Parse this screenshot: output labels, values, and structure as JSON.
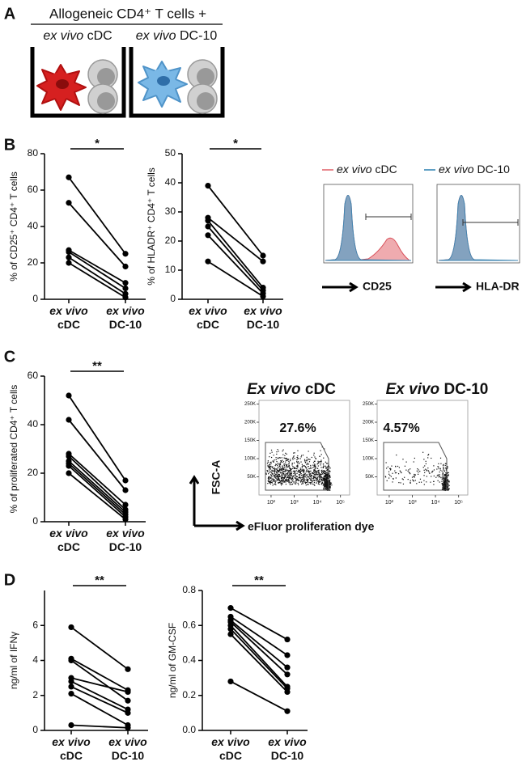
{
  "panel_labels": [
    "A",
    "B",
    "C",
    "D"
  ],
  "schematic": {
    "title": "Allogeneic CD4⁺ T cells +",
    "wells": [
      "ex vivo cDC",
      "ex vivo DC-10"
    ]
  },
  "flow_axes": {
    "ylabel": "FSC-A",
    "xlabel": "eFluor proliferation dye"
  },
  "chart_data": [
    {
      "type": "paired",
      "ylabel": "% of CD25⁺ CD4⁺ T cells",
      "annotation": "*",
      "categories": [
        "ex vivo cDC",
        "ex vivo DC-10"
      ],
      "ylim": [
        0,
        80
      ],
      "yticks": [
        0,
        20,
        40,
        60,
        80
      ],
      "series": [
        {
          "color": "#000000",
          "values": [
            67,
            25
          ]
        },
        {
          "color": "#000000",
          "values": [
            53,
            18
          ]
        },
        {
          "color": "#000000",
          "values": [
            27,
            9
          ]
        },
        {
          "color": "#000000",
          "values": [
            26,
            6
          ]
        },
        {
          "color": "#000000",
          "values": [
            23,
            3
          ]
        },
        {
          "color": "#000000",
          "values": [
            20,
            1
          ]
        }
      ]
    },
    {
      "type": "paired",
      "ylabel": "% of HLADR⁺ CD4⁺ T cells",
      "annotation": "*",
      "categories": [
        "ex vivo cDC",
        "ex vivo DC-10"
      ],
      "ylim": [
        0,
        50
      ],
      "yticks": [
        0,
        10,
        20,
        30,
        40,
        50
      ],
      "series": [
        {
          "color": "#000000",
          "values": [
            39,
            15
          ]
        },
        {
          "color": "#000000",
          "values": [
            28,
            13
          ]
        },
        {
          "color": "#000000",
          "values": [
            27,
            4
          ]
        },
        {
          "color": "#000000",
          "values": [
            25,
            3
          ]
        },
        {
          "color": "#000000",
          "values": [
            22,
            2
          ]
        },
        {
          "color": "#000000",
          "values": [
            13,
            1
          ]
        }
      ]
    },
    {
      "type": "overlay",
      "series": [
        {
          "name": "ex vivo cDC",
          "color": "#e8878d"
        },
        {
          "name": "ex vivo DC-10",
          "color": "#5f9fc4"
        }
      ],
      "xlabels": [
        "CD25",
        "HLA-DR"
      ]
    },
    {
      "type": "paired",
      "ylabel": "% of proliferated CD4⁺ T cells",
      "annotation": "**",
      "categories": [
        "ex vivo cDC",
        "ex vivo DC-10"
      ],
      "ylim": [
        0,
        60
      ],
      "yticks": [
        0,
        20,
        40,
        60
      ],
      "series": [
        {
          "color": "#000000",
          "values": [
            52,
            17
          ]
        },
        {
          "color": "#000000",
          "values": [
            42,
            13
          ]
        },
        {
          "color": "#000000",
          "values": [
            28,
            7
          ]
        },
        {
          "color": "#000000",
          "values": [
            27,
            5
          ]
        },
        {
          "color": "#000000",
          "values": [
            25,
            4
          ]
        },
        {
          "color": "#000000",
          "values": [
            24,
            3
          ]
        },
        {
          "color": "#000000",
          "values": [
            23,
            2
          ]
        },
        {
          "color": "#000000",
          "values": [
            20,
            1
          ]
        }
      ]
    },
    {
      "type": "flow",
      "title": "Ex vivo cDC",
      "values": [
        27.6
      ],
      "value_labels": [
        "27.6%"
      ],
      "xlim": [
        30,
        250000
      ],
      "log_x": true,
      "xticks": [
        {
          "value": 100,
          "label": "10²"
        },
        {
          "value": 1000,
          "label": "10³"
        },
        {
          "value": 10000,
          "label": "10⁴"
        },
        {
          "value": 100000,
          "label": "10⁵"
        }
      ],
      "ylim": [
        0,
        260000
      ],
      "yticks": [
        {
          "value": 50000,
          "label": "50K"
        },
        {
          "value": 100000,
          "label": "100K"
        },
        {
          "value": 150000,
          "label": "150K"
        },
        {
          "value": 200000,
          "label": "200K"
        },
        {
          "value": 250000,
          "label": "250K"
        }
      ]
    },
    {
      "type": "flow",
      "title": "Ex vivo DC-10",
      "values": [
        4.57
      ],
      "value_labels": [
        "4.57%"
      ],
      "xlim": [
        30,
        250000
      ],
      "log_x": true,
      "xticks": [
        {
          "value": 100,
          "label": "10²"
        },
        {
          "value": 1000,
          "label": "10³"
        },
        {
          "value": 10000,
          "label": "10⁴"
        },
        {
          "value": 100000,
          "label": "10⁵"
        }
      ],
      "ylim": [
        0,
        260000
      ],
      "yticks": [
        {
          "value": 50000,
          "label": "50K"
        },
        {
          "value": 100000,
          "label": "100K"
        },
        {
          "value": 150000,
          "label": "150K"
        },
        {
          "value": 200000,
          "label": "200K"
        },
        {
          "value": 250000,
          "label": "250K"
        }
      ]
    },
    {
      "type": "paired",
      "ylabel": "ng/ml of IFNγ",
      "annotation": "**",
      "categories": [
        "ex vivo cDC",
        "ex vivo DC-10"
      ],
      "ylim": [
        0,
        8
      ],
      "yticks": [
        0,
        2,
        4,
        6
      ],
      "series": [
        {
          "color": "#000000",
          "values": [
            5.9,
            3.5
          ]
        },
        {
          "color": "#000000",
          "values": [
            4.1,
            2.3
          ]
        },
        {
          "color": "#000000",
          "values": [
            4.0,
            1.7
          ]
        },
        {
          "color": "#000000",
          "values": [
            3.0,
            2.2
          ]
        },
        {
          "color": "#000000",
          "values": [
            2.8,
            1.2
          ]
        },
        {
          "color": "#000000",
          "values": [
            2.5,
            1.0
          ]
        },
        {
          "color": "#000000",
          "values": [
            2.1,
            0.3
          ]
        },
        {
          "color": "#000000",
          "values": [
            0.3,
            0.15
          ]
        }
      ]
    },
    {
      "type": "paired",
      "ylabel": "ng/ml of GM-CSF",
      "annotation": "**",
      "categories": [
        "ex vivo cDC",
        "ex vivo DC-10"
      ],
      "ylim": [
        0,
        0.8
      ],
      "yticks": [
        {
          "value": 0,
          "label": "0.0"
        },
        0.2,
        0.4,
        0.6,
        0.8
      ],
      "series": [
        {
          "color": "#000000",
          "values": [
            0.7,
            0.52
          ]
        },
        {
          "color": "#000000",
          "values": [
            0.65,
            0.43
          ]
        },
        {
          "color": "#000000",
          "values": [
            0.63,
            0.36
          ]
        },
        {
          "color": "#000000",
          "values": [
            0.62,
            0.32
          ]
        },
        {
          "color": "#000000",
          "values": [
            0.6,
            0.25
          ]
        },
        {
          "color": "#000000",
          "values": [
            0.58,
            0.24
          ]
        },
        {
          "color": "#000000",
          "values": [
            0.55,
            0.22
          ]
        },
        {
          "color": "#000000",
          "values": [
            0.28,
            0.11
          ]
        }
      ]
    }
  ]
}
